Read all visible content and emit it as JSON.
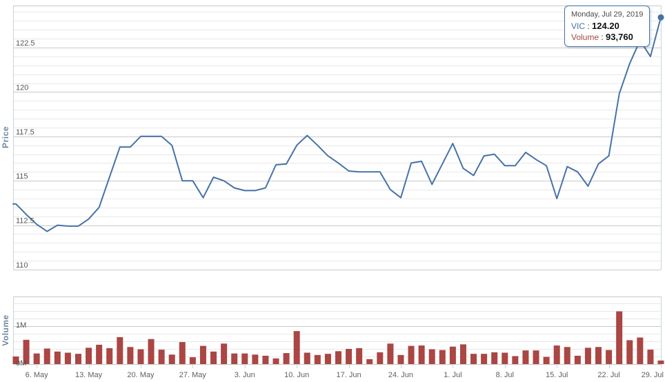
{
  "chart": {
    "symbol": "VIC",
    "colors": {
      "line": "#4572A7",
      "bar": "#AA4643",
      "grid_major": "#C8C8C8",
      "grid_minor": "#E8E8E8",
      "axis_line": "#C6D3E1",
      "label": "#555555",
      "axis_title": "#6D869F"
    },
    "tooltip": {
      "date": "Monday, Jul 29, 2019",
      "series_label": "VIC",
      "separator": " : ",
      "price_value": "124.20",
      "volume_label": "Volume",
      "volume_value": "93,760"
    },
    "price_axis": {
      "title": "Price",
      "tick_labels": [
        "110",
        "112.5",
        "115",
        "117.5",
        "120",
        "122.5"
      ],
      "tick_values": [
        110,
        112.5,
        115,
        117.5,
        120,
        122.5
      ],
      "minor_step": 0.5,
      "min": 110,
      "max": 124.9
    },
    "volume_axis": {
      "title": "Volume",
      "tick_labels": [
        "0M",
        "1M"
      ],
      "tick_values": [
        0,
        1000000
      ],
      "minor_step": 200000,
      "min": 0,
      "max": 1780000
    },
    "x_axis": {
      "tick_labels": [
        "6. May",
        "13. May",
        "20. May",
        "27. May",
        "3. Jun",
        "10. Jun",
        "17. Jun",
        "24. Jun",
        "1. Jul",
        "8. Jul",
        "15. Jul",
        "22. Jul",
        "29. Jul"
      ],
      "tick_indices": [
        2,
        7,
        12,
        17,
        22,
        27,
        32,
        37,
        42,
        47,
        52,
        57,
        62
      ]
    }
  },
  "chart_data": {
    "type": "line",
    "title": "",
    "xlabel": "",
    "ylabel": "Price",
    "legend": "none",
    "grid": true,
    "panes": [
      "price-line",
      "volume-bars"
    ],
    "dates": [
      "2019-05-02",
      "2019-05-03",
      "2019-05-06",
      "2019-05-07",
      "2019-05-08",
      "2019-05-09",
      "2019-05-10",
      "2019-05-13",
      "2019-05-14",
      "2019-05-15",
      "2019-05-16",
      "2019-05-17",
      "2019-05-20",
      "2019-05-21",
      "2019-05-22",
      "2019-05-23",
      "2019-05-24",
      "2019-05-27",
      "2019-05-28",
      "2019-05-29",
      "2019-05-30",
      "2019-05-31",
      "2019-06-03",
      "2019-06-04",
      "2019-06-05",
      "2019-06-06",
      "2019-06-07",
      "2019-06-10",
      "2019-06-11",
      "2019-06-12",
      "2019-06-13",
      "2019-06-14",
      "2019-06-17",
      "2019-06-18",
      "2019-06-19",
      "2019-06-20",
      "2019-06-21",
      "2019-06-24",
      "2019-06-25",
      "2019-06-26",
      "2019-06-27",
      "2019-06-28",
      "2019-07-01",
      "2019-07-02",
      "2019-07-03",
      "2019-07-04",
      "2019-07-05",
      "2019-07-08",
      "2019-07-09",
      "2019-07-10",
      "2019-07-11",
      "2019-07-12",
      "2019-07-15",
      "2019-07-16",
      "2019-07-17",
      "2019-07-18",
      "2019-07-19",
      "2019-07-22",
      "2019-07-23",
      "2019-07-24",
      "2019-07-25",
      "2019-07-26",
      "2019-07-29"
    ],
    "series": [
      {
        "name": "VIC",
        "type": "line",
        "values": [
          113.7,
          113.1,
          112.55,
          112.15,
          112.5,
          112.45,
          112.45,
          112.85,
          113.5,
          115.2,
          116.9,
          116.9,
          117.5,
          117.5,
          117.5,
          117.0,
          115.0,
          115.0,
          114.05,
          115.2,
          115.0,
          114.6,
          114.45,
          114.45,
          114.6,
          115.9,
          115.95,
          117.0,
          117.55,
          117.0,
          116.4,
          116.0,
          115.55,
          115.5,
          115.5,
          115.5,
          114.5,
          114.05,
          116.0,
          116.1,
          114.8,
          115.95,
          117.1,
          115.7,
          115.3,
          116.4,
          116.5,
          115.85,
          115.85,
          116.6,
          116.2,
          115.85,
          114.0,
          115.8,
          115.5,
          114.7,
          115.95,
          116.4,
          119.9,
          121.6,
          122.9,
          122.0,
          124.2
        ]
      },
      {
        "name": "Volume",
        "type": "bar",
        "values": [
          200000,
          640000,
          280000,
          410000,
          330000,
          300000,
          270000,
          430000,
          510000,
          420000,
          710000,
          450000,
          390000,
          660000,
          380000,
          250000,
          580000,
          180000,
          480000,
          330000,
          540000,
          280000,
          280000,
          250000,
          220000,
          150000,
          290000,
          870000,
          300000,
          240000,
          270000,
          340000,
          400000,
          420000,
          130000,
          310000,
          540000,
          240000,
          480000,
          490000,
          390000,
          370000,
          460000,
          520000,
          270000,
          270000,
          310000,
          300000,
          210000,
          360000,
          360000,
          190000,
          490000,
          450000,
          220000,
          430000,
          450000,
          370000,
          1390000,
          630000,
          700000,
          380000,
          93760
        ]
      }
    ],
    "last_point": {
      "date": "2019-07-29",
      "price": 124.2,
      "volume": 93760
    },
    "price_ylim": [
      110,
      124.9
    ],
    "volume_ylim": [
      0,
      1780000
    ]
  }
}
